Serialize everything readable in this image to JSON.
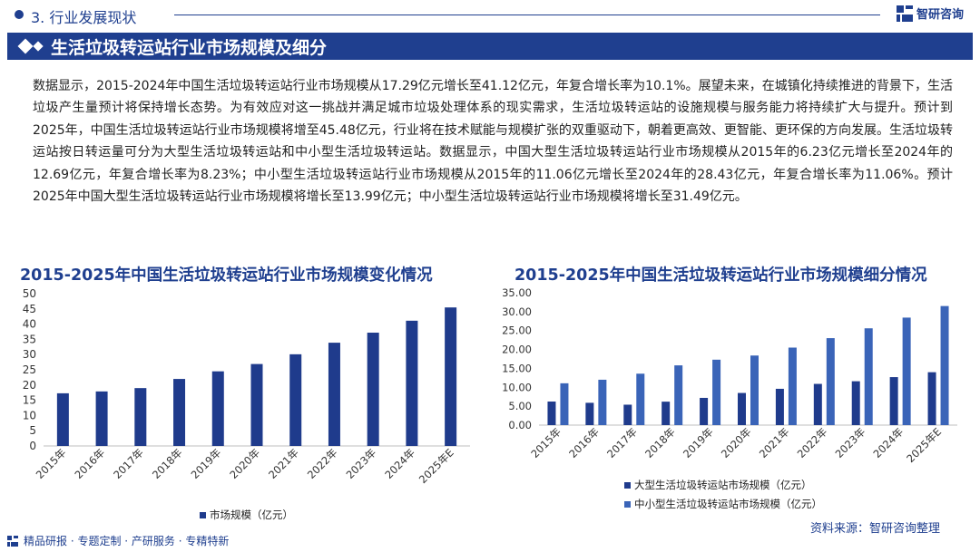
{
  "section": {
    "label": "3. 行业发展现状"
  },
  "brand": {
    "name": "智研咨询"
  },
  "banner": {
    "title": "生活垃圾转运站行业市场规模及细分"
  },
  "paragraph": "数据显示，2015-2024年中国生活垃圾转运站行业市场规模从17.29亿元增长至41.12亿元，年复合增长率为10.1%。展望未来，在城镇化持续推进的背景下，生活垃圾产生量预计将保持增长态势。为有效应对这一挑战并满足城市垃圾处理体系的现实需求，生活垃圾转运站的设施规模与服务能力将持续扩大与提升。预计到2025年，中国生活垃圾转运站行业市场规模将增至45.48亿元，行业将在技术赋能与规模扩张的双重驱动下，朝着更高效、更智能、更环保的方向发展。生活垃圾转运站按日转运量可分为大型生活垃圾转运站和中小型生活垃圾转运站。数据显示，中国大型生活垃圾转运站行业市场规模从2015年的6.23亿元增长至2024年的12.69亿元，年复合增长率为8.23%；中小型生活垃圾转运站行业市场规模从2015年的11.06亿元增长至2024年的28.43亿元，年复合增长率为11.06%。预计2025年中国大型生活垃圾转运站行业市场规模将增长至13.99亿元；中小型生活垃圾转运站行业市场规模将增长至31.49亿元。",
  "footer": {
    "text": "精品研报 · 专题定制 · 产研服务 · 专精特新",
    "source": "资料来源：智研咨询整理"
  },
  "colors": {
    "brand": "#1f3f8f",
    "bar_dark": "#1f3b8c",
    "bar_light": "#3a64b8"
  },
  "chart_data": [
    {
      "type": "bar",
      "title": "2015-2025年中国生活垃圾转运站行业市场规模变化情况",
      "categories": [
        "2015年",
        "2016年",
        "2017年",
        "2018年",
        "2019年",
        "2020年",
        "2021年",
        "2022年",
        "2023年",
        "2024年",
        "2025年E"
      ],
      "series": [
        {
          "name": "市场规模（亿元）",
          "values": [
            17.29,
            17.9,
            19.0,
            22.0,
            24.5,
            26.9,
            30.1,
            33.9,
            37.2,
            41.12,
            45.48
          ]
        }
      ],
      "ylim": [
        0,
        50
      ],
      "yticks": [
        "0",
        "5",
        "10",
        "15",
        "20",
        "25",
        "30",
        "35",
        "40",
        "45",
        "50"
      ],
      "xlabel": "",
      "ylabel": "",
      "legend": "bottom"
    },
    {
      "type": "bar",
      "title": "2015-2025年中国生活垃圾转运站行业市场规模细分情况",
      "categories": [
        "2015年",
        "2016年",
        "2017年",
        "2018年",
        "2019年",
        "2020年",
        "2021年",
        "2022年",
        "2023年",
        "2024年",
        "2025年E"
      ],
      "series": [
        {
          "name": "大型生活垃圾转运站市场规模（亿元）",
          "values": [
            6.23,
            5.9,
            5.4,
            6.2,
            7.2,
            8.5,
            9.6,
            10.9,
            11.6,
            12.69,
            13.99
          ]
        },
        {
          "name": "中小型生活垃圾转运站市场规模（亿元）",
          "values": [
            11.06,
            12.0,
            13.6,
            15.8,
            17.3,
            18.4,
            20.5,
            23.0,
            25.6,
            28.43,
            31.49
          ]
        }
      ],
      "ylim": [
        0,
        35
      ],
      "yticks": [
        "0.00",
        "5.00",
        "10.00",
        "15.00",
        "20.00",
        "25.00",
        "30.00",
        "35.00"
      ],
      "xlabel": "",
      "ylabel": "",
      "legend": "bottom"
    }
  ]
}
